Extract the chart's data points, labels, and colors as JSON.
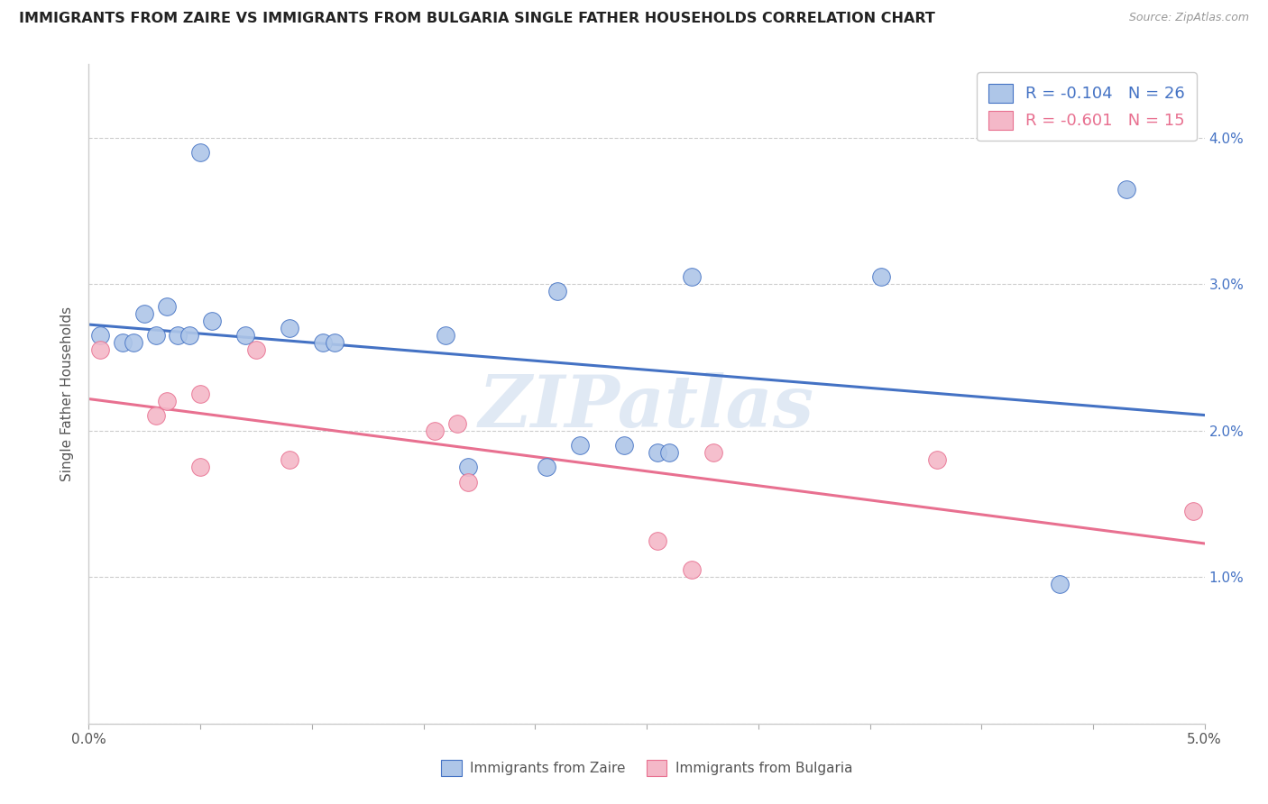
{
  "title": "IMMIGRANTS FROM ZAIRE VS IMMIGRANTS FROM BULGARIA SINGLE FATHER HOUSEHOLDS CORRELATION CHART",
  "source": "Source: ZipAtlas.com",
  "ylabel": "Single Father Households",
  "xmin": 0.0,
  "xmax": 5.0,
  "ymin": 0.0,
  "ymax": 4.5,
  "zaire_color": "#aec6e8",
  "bulgaria_color": "#f4b8c8",
  "zaire_line_color": "#4472c4",
  "bulgaria_line_color": "#e87090",
  "zaire_R": -0.104,
  "zaire_N": 26,
  "bulgaria_R": -0.601,
  "bulgaria_N": 15,
  "legend_label_zaire": "Immigrants from Zaire",
  "legend_label_bulgaria": "Immigrants from Bulgaria",
  "watermark": "ZIPatlas",
  "zaire_x": [
    0.05,
    0.15,
    0.2,
    0.25,
    0.3,
    0.35,
    0.4,
    0.45,
    0.5,
    0.55,
    0.7,
    0.9,
    1.05,
    1.1,
    1.6,
    1.7,
    2.05,
    2.1,
    2.2,
    2.4,
    2.55,
    2.6,
    2.7,
    3.55,
    4.35,
    4.65
  ],
  "zaire_y": [
    2.65,
    2.6,
    2.6,
    2.8,
    2.65,
    2.85,
    2.65,
    2.65,
    3.9,
    2.75,
    2.65,
    2.7,
    2.6,
    2.6,
    2.65,
    1.75,
    1.75,
    2.95,
    1.9,
    1.9,
    1.85,
    1.85,
    3.05,
    3.05,
    0.95,
    3.65
  ],
  "bulgaria_x": [
    0.05,
    0.3,
    0.35,
    0.5,
    0.5,
    0.75,
    0.9,
    1.55,
    1.65,
    1.7,
    2.55,
    2.7,
    2.8,
    3.8,
    4.95
  ],
  "bulgaria_y": [
    2.55,
    2.1,
    2.2,
    2.25,
    1.75,
    2.55,
    1.8,
    2.0,
    2.05,
    1.65,
    1.25,
    1.05,
    1.85,
    1.8,
    1.45
  ],
  "ytick_values": [
    0.0,
    1.0,
    2.0,
    3.0,
    4.0
  ],
  "xtick_values": [
    0.0,
    0.5,
    1.0,
    1.5,
    2.0,
    2.5,
    3.0,
    3.5,
    4.0,
    4.5,
    5.0
  ]
}
